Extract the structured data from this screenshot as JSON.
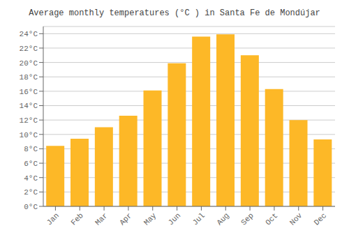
{
  "chart_data": {
    "type": "bar",
    "title": "Average monthly temperatures (°C ) in Santa Fe de Mondújar",
    "categories": [
      "Jan",
      "Feb",
      "Mar",
      "Apr",
      "May",
      "Jun",
      "Jul",
      "Aug",
      "Sep",
      "Oct",
      "Nov",
      "Dec"
    ],
    "values": [
      8.4,
      9.4,
      11.0,
      12.6,
      16.1,
      19.9,
      23.6,
      23.9,
      21.0,
      16.3,
      12.0,
      9.3
    ],
    "color": "#FDB827",
    "ylim": [
      0,
      25
    ],
    "yticks": [
      {
        "value": 0,
        "label": "0°C"
      },
      {
        "value": 2,
        "label": "2°C"
      },
      {
        "value": 4,
        "label": "4°C"
      },
      {
        "value": 6,
        "label": "6°C"
      },
      {
        "value": 8,
        "label": "8°C"
      },
      {
        "value": 10,
        "label": "10°C"
      },
      {
        "value": 12,
        "label": "12°C"
      },
      {
        "value": 14,
        "label": "14°C"
      },
      {
        "value": 16,
        "label": "16°C"
      },
      {
        "value": 18,
        "label": "18°C"
      },
      {
        "value": 20,
        "label": "20°C"
      },
      {
        "value": 22,
        "label": "22°C"
      },
      {
        "value": 24,
        "label": "24°C"
      }
    ],
    "grid": true
  }
}
